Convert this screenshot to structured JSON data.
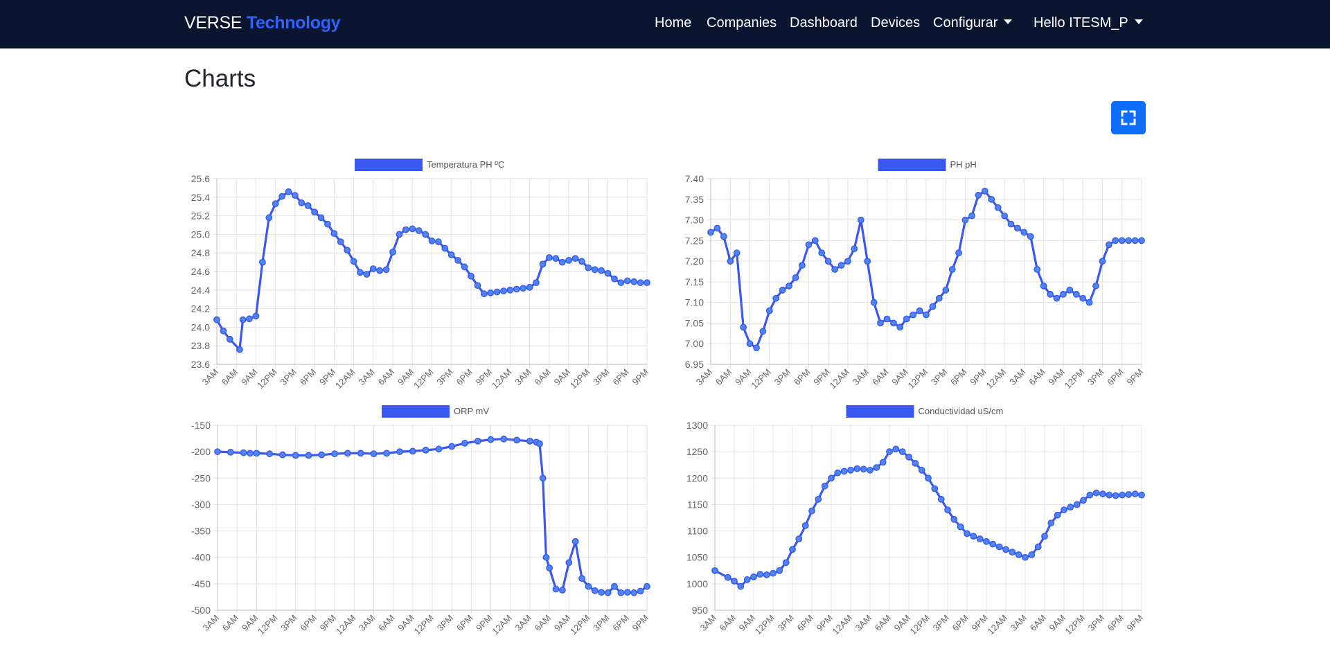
{
  "navbar": {
    "brand_main": "VERSE",
    "brand_accent": "Technology",
    "items": [
      "Home",
      "Companies",
      "Dashboard",
      "Devices"
    ],
    "dropdown_label": "Configurar",
    "user_label": "Hello ITESM_P",
    "background": "#0b1530",
    "accent_color": "#2f62ff"
  },
  "page": {
    "title": "Charts",
    "fullscreen_icon": "expand-icon",
    "button_color": "#0d6efd"
  },
  "chart_data": [
    {
      "type": "line",
      "legend": "Temperatura PH ºC",
      "color": "#3a57f0",
      "ylim": [
        23.6,
        25.6
      ],
      "yticks": [
        25.6,
        25.4,
        25.2,
        25.0,
        24.8,
        24.6,
        24.4,
        24.2,
        24.0,
        23.8,
        23.6
      ],
      "ytick_labels": [
        "25.6",
        "25.4",
        "25.2",
        "25.0",
        "24.8",
        "24.6",
        "24.4",
        "24.2",
        "24.0",
        "23.8",
        "23.6"
      ],
      "xlim": [
        0,
        66
      ],
      "xtick_labels": [
        "3AM",
        "6AM",
        "9AM",
        "12PM",
        "3PM",
        "6PM",
        "9PM",
        "12AM",
        "3AM",
        "6AM",
        "9AM",
        "12PM",
        "3PM",
        "6PM",
        "9PM",
        "12AM",
        "3AM",
        "6AM",
        "9AM",
        "12PM",
        "3PM",
        "6PM",
        "9PM"
      ],
      "x": [
        0,
        1,
        2,
        3.5,
        4,
        5,
        6,
        7,
        8,
        9,
        10,
        11,
        12,
        13,
        14,
        15,
        16,
        17,
        18,
        19,
        20,
        21,
        22,
        23,
        24,
        25,
        26,
        27,
        28,
        29,
        30,
        31,
        32,
        33,
        34,
        35,
        36,
        37,
        38,
        39,
        40,
        41,
        42,
        43,
        44,
        45,
        46,
        47,
        48,
        49,
        50,
        51,
        52,
        53,
        54,
        55,
        56,
        57,
        58,
        59,
        60,
        61,
        62,
        63,
        64,
        65,
        66
      ],
      "y": [
        24.08,
        23.96,
        23.87,
        23.76,
        24.08,
        24.09,
        24.12,
        24.7,
        25.18,
        25.33,
        25.41,
        25.46,
        25.42,
        25.34,
        25.31,
        25.24,
        25.18,
        25.11,
        25.01,
        24.92,
        24.83,
        24.71,
        24.59,
        24.57,
        24.63,
        24.61,
        24.62,
        24.81,
        25.0,
        25.05,
        25.06,
        25.04,
        25.0,
        24.93,
        24.92,
        24.85,
        24.78,
        24.72,
        24.65,
        24.55,
        24.45,
        24.36,
        24.37,
        24.38,
        24.39,
        24.4,
        24.41,
        24.42,
        24.43,
        24.48,
        24.68,
        24.75,
        24.74,
        24.7,
        24.72,
        24.74,
        24.71,
        24.64,
        24.62,
        24.61,
        24.58,
        24.52,
        24.48,
        24.5,
        24.49,
        24.48,
        24.48
      ]
    },
    {
      "type": "line",
      "legend": "PH pH",
      "color": "#3a57f0",
      "ylim": [
        6.95,
        7.4
      ],
      "yticks": [
        7.4,
        7.35,
        7.3,
        7.25,
        7.2,
        7.15,
        7.1,
        7.05,
        7.0,
        6.95
      ],
      "ytick_labels": [
        "7.40",
        "7.35",
        "7.30",
        "7.25",
        "7.20",
        "7.15",
        "7.10",
        "7.05",
        "7.00",
        "6.95"
      ],
      "xlim": [
        0,
        66
      ],
      "xtick_labels": [
        "3AM",
        "6AM",
        "9AM",
        "12PM",
        "3PM",
        "6PM",
        "9PM",
        "12AM",
        "3AM",
        "6AM",
        "9AM",
        "12PM",
        "3PM",
        "6PM",
        "9PM",
        "12AM",
        "3AM",
        "6AM",
        "9AM",
        "12PM",
        "3PM",
        "6PM",
        "9PM"
      ],
      "x": [
        0,
        1,
        2,
        3,
        4,
        5,
        6,
        7,
        8,
        9,
        10,
        11,
        12,
        13,
        14,
        15,
        16,
        17,
        18,
        19,
        20,
        21,
        22,
        23,
        24,
        25,
        26,
        27,
        28,
        29,
        30,
        31,
        32,
        33,
        34,
        35,
        36,
        37,
        38,
        39,
        40,
        41,
        42,
        43,
        44,
        45,
        46,
        47,
        48,
        49,
        50,
        51,
        52,
        53,
        54,
        55,
        56,
        57,
        58,
        59,
        60,
        61,
        62,
        63,
        64,
        65,
        66
      ],
      "y": [
        7.27,
        7.28,
        7.26,
        7.2,
        7.22,
        7.04,
        7.0,
        6.99,
        7.03,
        7.08,
        7.11,
        7.13,
        7.14,
        7.16,
        7.19,
        7.24,
        7.25,
        7.22,
        7.2,
        7.18,
        7.19,
        7.2,
        7.23,
        7.3,
        7.2,
        7.1,
        7.05,
        7.06,
        7.05,
        7.04,
        7.06,
        7.07,
        7.08,
        7.07,
        7.09,
        7.11,
        7.13,
        7.18,
        7.22,
        7.3,
        7.31,
        7.36,
        7.37,
        7.35,
        7.33,
        7.31,
        7.29,
        7.28,
        7.27,
        7.26,
        7.18,
        7.14,
        7.12,
        7.11,
        7.12,
        7.13,
        7.12,
        7.11,
        7.1,
        7.14,
        7.2,
        7.24,
        7.25,
        7.25,
        7.25,
        7.25,
        7.25
      ]
    },
    {
      "type": "line",
      "legend": "ORP mV",
      "color": "#3a57f0",
      "ylim": [
        -500,
        -150
      ],
      "yticks": [
        -150,
        -200,
        -250,
        -300,
        -350,
        -400,
        -450,
        -500
      ],
      "ytick_labels": [
        "-150",
        "-200",
        "-250",
        "-300",
        "-350",
        "-400",
        "-450",
        "-500"
      ],
      "xlim": [
        0,
        66
      ],
      "xtick_labels": [
        "3AM",
        "6AM",
        "9AM",
        "12PM",
        "3PM",
        "6PM",
        "9PM",
        "12AM",
        "3AM",
        "6AM",
        "9AM",
        "12PM",
        "3PM",
        "6PM",
        "9PM",
        "12AM",
        "3AM",
        "6AM",
        "9AM",
        "12PM",
        "3PM",
        "6PM",
        "9PM"
      ],
      "x": [
        0,
        2,
        4,
        5,
        6,
        8,
        10,
        12,
        14,
        16,
        18,
        20,
        22,
        24,
        26,
        28,
        30,
        32,
        34,
        36,
        38,
        40,
        42,
        44,
        46,
        48,
        49,
        49.5,
        50,
        50.5,
        51,
        52,
        53,
        54,
        55,
        56,
        57,
        58,
        59,
        60,
        61,
        62,
        63,
        64,
        65,
        66
      ],
      "y": [
        -200,
        -201,
        -202,
        -203,
        -203,
        -204,
        -206,
        -207,
        -207,
        -206,
        -204,
        -203,
        -203,
        -204,
        -203,
        -200,
        -199,
        -197,
        -195,
        -190,
        -184,
        -180,
        -177,
        -176,
        -178,
        -180,
        -182,
        -185,
        -250,
        -400,
        -420,
        -460,
        -462,
        -410,
        -370,
        -440,
        -455,
        -463,
        -466,
        -467,
        -455,
        -467,
        -466,
        -467,
        -464,
        -455
      ]
    },
    {
      "type": "line",
      "legend": "Conductividad uS/cm",
      "color": "#3a57f0",
      "ylim": [
        950,
        1300
      ],
      "yticks": [
        1300,
        1250,
        1200,
        1150,
        1100,
        1050,
        1000,
        950
      ],
      "ytick_labels": [
        "1300",
        "1250",
        "1200",
        "1150",
        "1100",
        "1050",
        "1000",
        "950"
      ],
      "xlim": [
        0,
        66
      ],
      "xtick_labels": [
        "3AM",
        "6AM",
        "9AM",
        "12PM",
        "3PM",
        "6PM",
        "9PM",
        "12AM",
        "3AM",
        "6AM",
        "9AM",
        "12PM",
        "3PM",
        "6PM",
        "9PM",
        "12AM",
        "3AM",
        "6AM",
        "9AM",
        "12PM",
        "3PM",
        "6PM",
        "9PM"
      ],
      "x": [
        0,
        2,
        3,
        4,
        5,
        6,
        7,
        8,
        9,
        10,
        11,
        12,
        13,
        14,
        15,
        16,
        17,
        18,
        19,
        20,
        21,
        22,
        23,
        24,
        25,
        26,
        27,
        28,
        29,
        30,
        31,
        32,
        33,
        34,
        35,
        36,
        37,
        38,
        39,
        40,
        41,
        42,
        43,
        44,
        45,
        46,
        47,
        48,
        49,
        50,
        51,
        52,
        53,
        54,
        55,
        56,
        57,
        58,
        59,
        60,
        61,
        62,
        63,
        64,
        65,
        66
      ],
      "y": [
        1025,
        1012,
        1005,
        995,
        1008,
        1013,
        1018,
        1017,
        1020,
        1025,
        1040,
        1065,
        1085,
        1110,
        1138,
        1160,
        1185,
        1200,
        1210,
        1213,
        1215,
        1218,
        1217,
        1215,
        1220,
        1230,
        1250,
        1255,
        1250,
        1240,
        1228,
        1215,
        1200,
        1180,
        1160,
        1140,
        1122,
        1108,
        1095,
        1090,
        1085,
        1080,
        1075,
        1070,
        1065,
        1060,
        1055,
        1050,
        1055,
        1070,
        1090,
        1115,
        1130,
        1140,
        1145,
        1150,
        1158,
        1168,
        1172,
        1170,
        1168,
        1167,
        1168,
        1169,
        1170,
        1168
      ]
    }
  ]
}
